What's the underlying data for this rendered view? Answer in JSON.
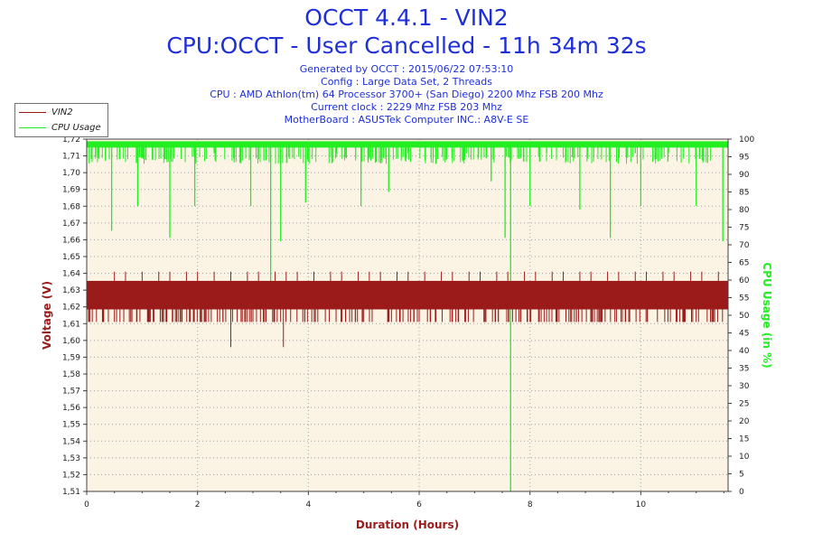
{
  "header": {
    "title": "OCCT 4.4.1 - VIN2",
    "subtitle": "CPU:OCCT - User Cancelled - 11h 34m 32s",
    "info_lines": [
      "Generated by OCCT : 2015/06/22 07:53:10",
      "Config : Large Data Set, 2 Threads",
      "CPU : AMD Athlon(tm) 64 Processor 3700+ (San Diego) 2200 Mhz FSB 200 Mhz",
      "Current clock : 2229 Mhz FSB 203 Mhz",
      "MotherBoard : ASUSTek Computer INC.: A8V-E SE"
    ]
  },
  "legend": {
    "position": "top-left",
    "items": [
      {
        "label": "VIN2",
        "color": "#9b1b1b"
      },
      {
        "label": "CPU Usage",
        "color": "#22ee22"
      }
    ]
  },
  "chart_data": {
    "type": "line",
    "xlabel": "Duration (Hours)",
    "ylabel": "Voltage (V)",
    "y2label": "CPU Usage (in %)",
    "xlim": [
      0,
      11.575
    ],
    "ylim": [
      1.51,
      1.72
    ],
    "y2lim": [
      0,
      100
    ],
    "x_ticks": [
      0,
      2,
      4,
      6,
      8,
      10
    ],
    "y_ticks": [
      "1,51",
      "1,52",
      "1,53",
      "1,54",
      "1,55",
      "1,56",
      "1,57",
      "1,58",
      "1,59",
      "1,60",
      "1,61",
      "1,62",
      "1,63",
      "1,64",
      "1,65",
      "1,66",
      "1,67",
      "1,68",
      "1,69",
      "1,70",
      "1,71",
      "1,72"
    ],
    "y2_ticks": [
      0,
      5,
      10,
      15,
      20,
      25,
      30,
      35,
      40,
      45,
      50,
      55,
      60,
      65,
      70,
      75,
      80,
      85,
      90,
      95,
      100
    ],
    "grid": true,
    "colors": {
      "background": "#fbf3e4",
      "grid": "#a0a0a0",
      "voltage": "#9b1b1b",
      "cpu": "#22ee22",
      "axis_title": "#9b1b1b",
      "y2_axis_title": "#22ee22"
    },
    "series": [
      {
        "name": "VIN2",
        "axis": "left",
        "baseline_band": [
          1.6185,
          1.6355
        ],
        "spikes_up": [
          0.5,
          0.7,
          1.0,
          1.3,
          1.5,
          1.8,
          2.0,
          2.3,
          2.6,
          2.9,
          3.1,
          3.4,
          3.6,
          3.8,
          4.1,
          4.4,
          4.6,
          4.9,
          5.1,
          5.3,
          5.6,
          5.8,
          6.1,
          6.4,
          6.6,
          6.9,
          7.1,
          7.4,
          7.6,
          7.9,
          8.1,
          8.4,
          8.6,
          8.9,
          9.1,
          9.4,
          9.6,
          9.9,
          10.1,
          10.4,
          10.6,
          10.9,
          11.1,
          11.4
        ],
        "spikes_down": [
          [
            0.1,
            1.611
          ],
          [
            0.3,
            1.611
          ],
          [
            0.6,
            1.611
          ],
          [
            0.9,
            1.611
          ],
          [
            1.2,
            1.611
          ],
          [
            1.6,
            1.611
          ],
          [
            2.2,
            1.611
          ],
          [
            2.4,
            1.611
          ],
          [
            2.6,
            1.596
          ],
          [
            3.0,
            1.611
          ],
          [
            3.2,
            1.611
          ],
          [
            3.5,
            1.611
          ],
          [
            3.55,
            1.596
          ],
          [
            3.9,
            1.611
          ],
          [
            4.5,
            1.611
          ],
          [
            5.0,
            1.611
          ],
          [
            5.5,
            1.611
          ],
          [
            6.0,
            1.611
          ],
          [
            6.6,
            1.611
          ],
          [
            7.2,
            1.611
          ],
          [
            7.8,
            1.611
          ],
          [
            8.3,
            1.611
          ],
          [
            8.8,
            1.611
          ],
          [
            9.3,
            1.611
          ],
          [
            9.8,
            1.611
          ],
          [
            10.3,
            1.611
          ],
          [
            10.8,
            1.611
          ],
          [
            11.3,
            1.611
          ]
        ]
      },
      {
        "name": "CPU Usage",
        "axis": "right",
        "baseline": 98.5,
        "dips": [
          [
            0.2,
            96
          ],
          [
            0.45,
            74
          ],
          [
            0.92,
            81
          ],
          [
            1.5,
            72
          ],
          [
            1.95,
            81
          ],
          [
            2.3,
            96
          ],
          [
            2.96,
            81
          ],
          [
            3.32,
            54
          ],
          [
            3.5,
            71
          ],
          [
            3.95,
            82
          ],
          [
            4.5,
            96
          ],
          [
            4.95,
            81
          ],
          [
            5.45,
            85
          ],
          [
            5.8,
            96
          ],
          [
            6.3,
            93
          ],
          [
            6.85,
            96
          ],
          [
            7.3,
            88
          ],
          [
            7.55,
            72
          ],
          [
            7.65,
            0
          ],
          [
            8.0,
            81
          ],
          [
            8.3,
            96
          ],
          [
            8.9,
            80
          ],
          [
            9.45,
            72
          ],
          [
            9.9,
            96
          ],
          [
            10.0,
            81
          ],
          [
            10.5,
            96
          ],
          [
            11.0,
            81
          ],
          [
            11.48,
            71
          ]
        ]
      }
    ]
  }
}
